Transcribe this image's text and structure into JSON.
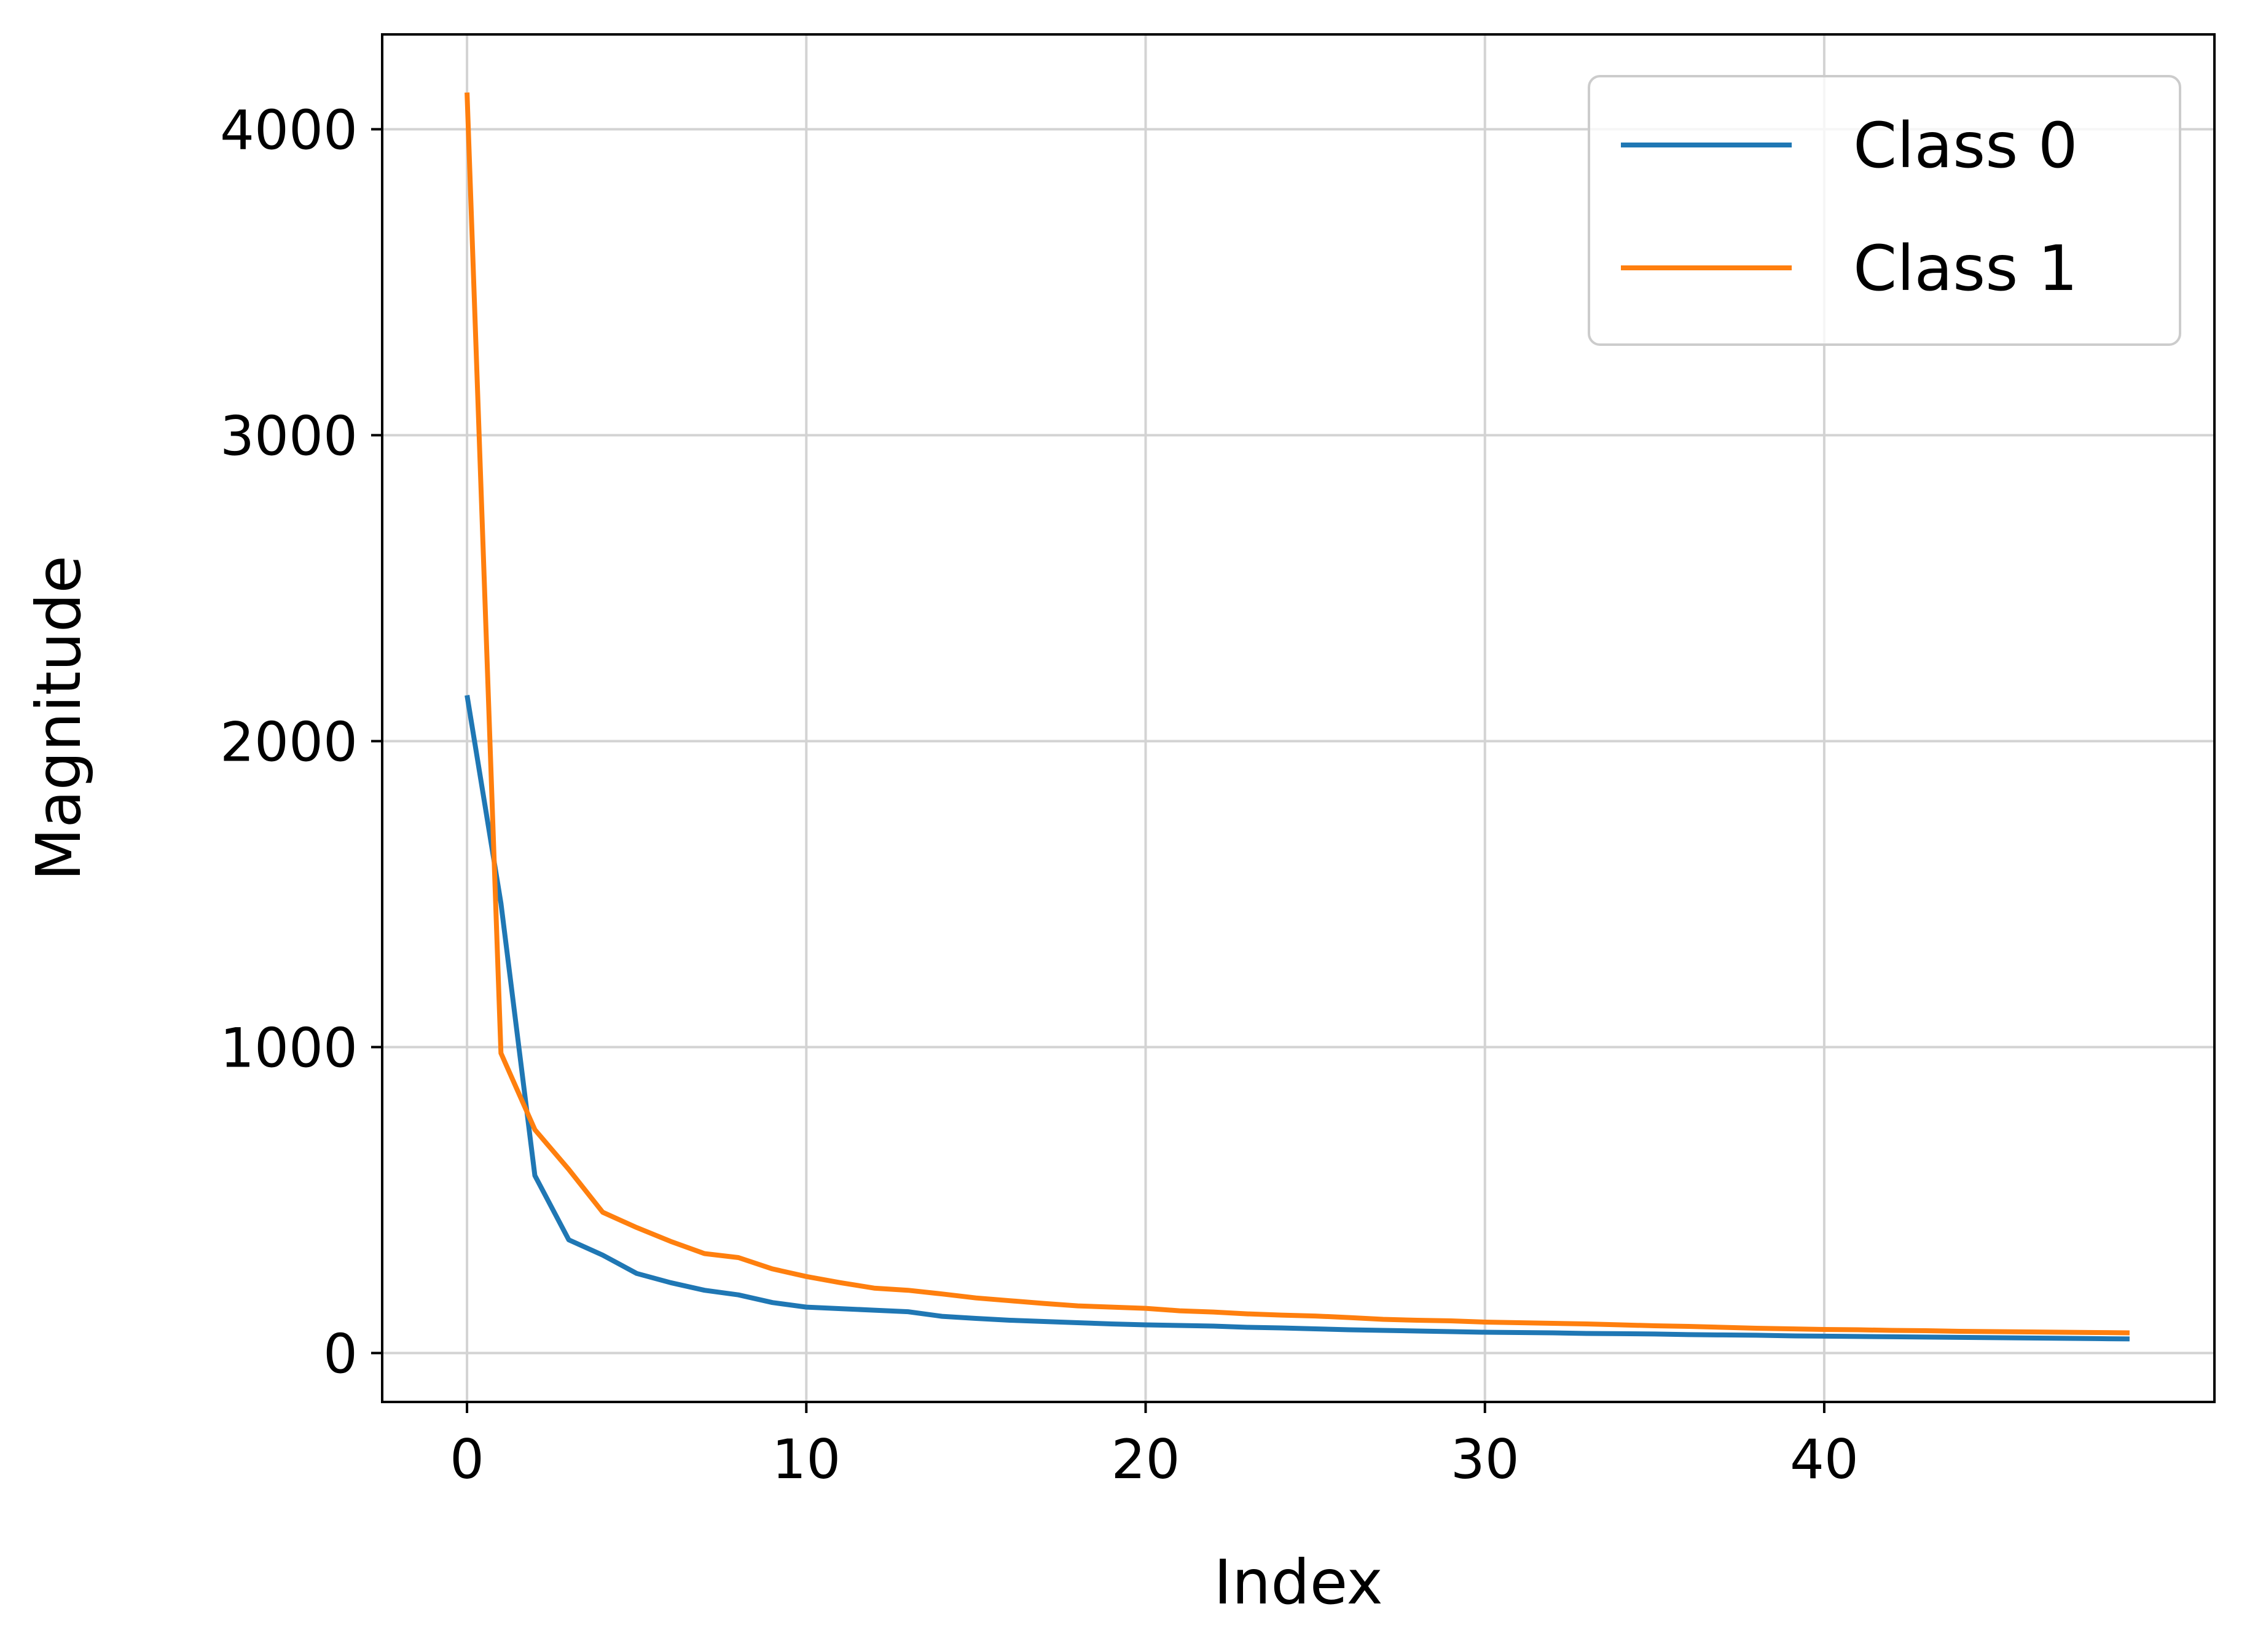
{
  "chart_data": {
    "type": "line",
    "xlabel": "Index",
    "ylabel": "Magnitude",
    "xlim": [
      -2.5,
      51.5
    ],
    "ylim": [
      -160,
      4310
    ],
    "xticks": [
      0,
      10,
      20,
      30,
      40
    ],
    "yticks": [
      0,
      1000,
      2000,
      3000,
      4000
    ],
    "grid": true,
    "legend_position": "top-right",
    "x": [
      0,
      1,
      2,
      3,
      4,
      5,
      6,
      7,
      8,
      9,
      10,
      11,
      12,
      13,
      14,
      15,
      16,
      17,
      18,
      19,
      20,
      21,
      22,
      23,
      24,
      25,
      26,
      27,
      28,
      29,
      30,
      31,
      32,
      33,
      34,
      35,
      36,
      37,
      38,
      39,
      40,
      41,
      42,
      43,
      44,
      45,
      46,
      47,
      48,
      49
    ],
    "series": [
      {
        "name": "Class 0",
        "color": "#1f77b4",
        "values": [
          2150,
          1470,
          580,
          370,
          320,
          260,
          230,
          205,
          190,
          165,
          150,
          145,
          140,
          135,
          120,
          113,
          107,
          103,
          99,
          95,
          92,
          90,
          88,
          84,
          82,
          79,
          76,
          74,
          72,
          70,
          68,
          67,
          66,
          64,
          63,
          62,
          60,
          59,
          58,
          56,
          55,
          54,
          53,
          52,
          51,
          50,
          49,
          48,
          47,
          46
        ]
      },
      {
        "name": "Class 1",
        "color": "#ff7f0e",
        "values": [
          4120,
          980,
          730,
          600,
          460,
          410,
          365,
          325,
          312,
          275,
          250,
          230,
          212,
          205,
          193,
          180,
          171,
          162,
          154,
          150,
          146,
          138,
          134,
          128,
          124,
          121,
          116,
          110,
          107,
          105,
          101,
          99,
          97,
          95,
          92,
          89,
          87,
          84,
          81,
          79,
          77,
          76,
          74,
          73,
          71,
          70,
          69,
          68,
          67,
          66
        ]
      }
    ]
  }
}
